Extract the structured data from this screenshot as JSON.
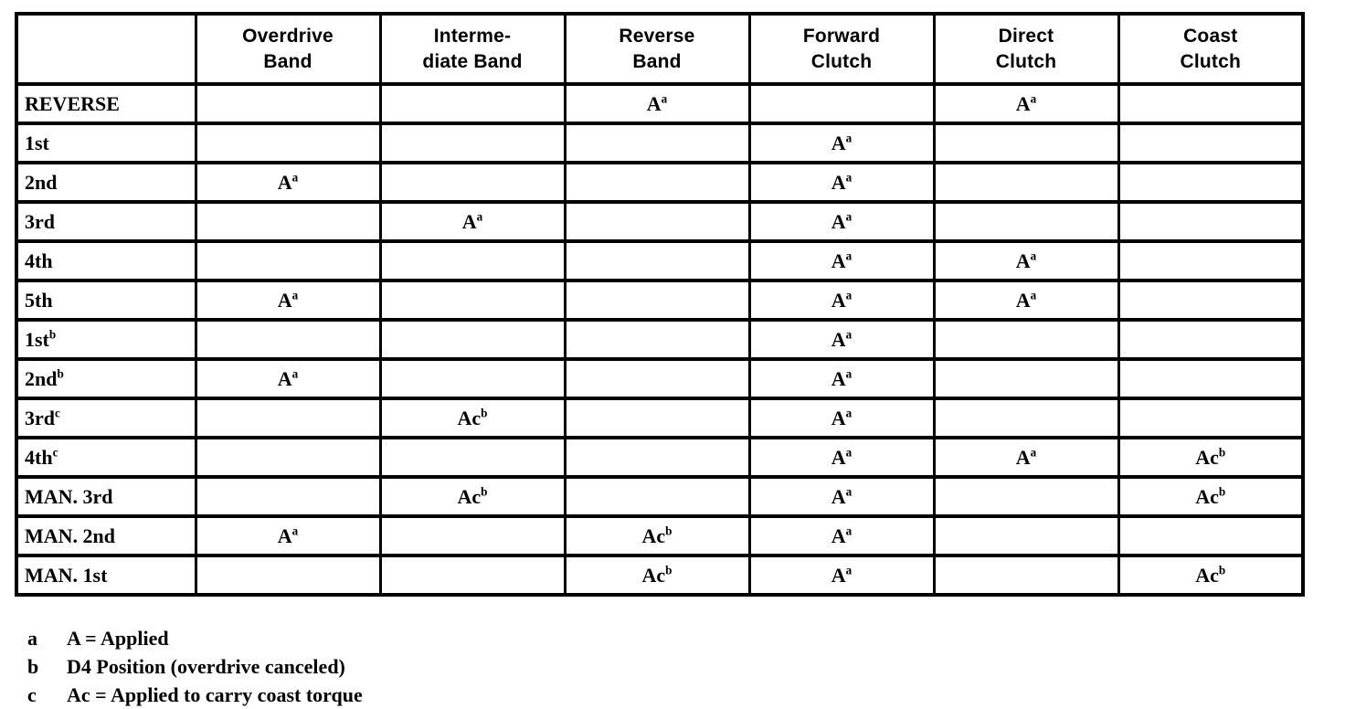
{
  "page": {
    "background_color": "#ffffff",
    "ink_color": "#000000",
    "description": "Clutch and band application chart (scanned manual page)"
  },
  "table": {
    "headers": [
      {
        "line1": "",
        "line2": ""
      },
      {
        "line1": "Overdrive",
        "line2": "Band"
      },
      {
        "line1": "Interme-",
        "line2": "diate Band"
      },
      {
        "line1": "Reverse",
        "line2": "Band"
      },
      {
        "line1": "Forward",
        "line2": "Clutch"
      },
      {
        "line1": "Direct",
        "line2": "Clutch"
      },
      {
        "line1": "Coast",
        "line2": "Clutch"
      }
    ],
    "rows": [
      {
        "label": "REVERSE",
        "sup": "",
        "cells": [
          null,
          null,
          {
            "text": "A",
            "sup": "a"
          },
          null,
          {
            "text": "A",
            "sup": "a"
          },
          null
        ]
      },
      {
        "label": "1st",
        "sup": "",
        "cells": [
          null,
          null,
          null,
          {
            "text": "A",
            "sup": "a"
          },
          null,
          null
        ]
      },
      {
        "label": "2nd",
        "sup": "",
        "cells": [
          {
            "text": "A",
            "sup": "a"
          },
          null,
          null,
          {
            "text": "A",
            "sup": "a"
          },
          null,
          null
        ]
      },
      {
        "label": "3rd",
        "sup": "",
        "cells": [
          null,
          {
            "text": "A",
            "sup": "a"
          },
          null,
          {
            "text": "A",
            "sup": "a"
          },
          null,
          null
        ]
      },
      {
        "label": "4th",
        "sup": "",
        "cells": [
          null,
          null,
          null,
          {
            "text": "A",
            "sup": "a"
          },
          {
            "text": "A",
            "sup": "a"
          },
          null
        ]
      },
      {
        "label": "5th",
        "sup": "",
        "cells": [
          {
            "text": "A",
            "sup": "a"
          },
          null,
          null,
          {
            "text": "A",
            "sup": "a"
          },
          {
            "text": "A",
            "sup": "a"
          },
          null
        ]
      },
      {
        "label": "1st",
        "sup": "b",
        "cells": [
          null,
          null,
          null,
          {
            "text": "A",
            "sup": "a"
          },
          null,
          null
        ]
      },
      {
        "label": "2nd",
        "sup": "b",
        "cells": [
          {
            "text": "A",
            "sup": "a"
          },
          null,
          null,
          {
            "text": "A",
            "sup": "a"
          },
          null,
          null
        ]
      },
      {
        "label": "3rd",
        "sup": "c",
        "cells": [
          null,
          {
            "text": "Ac",
            "sup": "b"
          },
          null,
          {
            "text": "A",
            "sup": "a"
          },
          null,
          null
        ]
      },
      {
        "label": "4th",
        "sup": "c",
        "cells": [
          null,
          null,
          null,
          {
            "text": "A",
            "sup": "a"
          },
          {
            "text": "A",
            "sup": "a"
          },
          {
            "text": "Ac",
            "sup": "b"
          }
        ]
      },
      {
        "label": "MAN. 3rd",
        "sup": "",
        "cells": [
          null,
          {
            "text": "Ac",
            "sup": "b"
          },
          null,
          {
            "text": "A",
            "sup": "a"
          },
          null,
          {
            "text": "Ac",
            "sup": "b"
          }
        ]
      },
      {
        "label": "MAN. 2nd",
        "sup": "",
        "cells": [
          {
            "text": "A",
            "sup": "a"
          },
          null,
          {
            "text": "Ac",
            "sup": "b"
          },
          {
            "text": "A",
            "sup": "a"
          },
          null,
          null
        ]
      },
      {
        "label": "MAN. 1st",
        "sup": "",
        "cells": [
          null,
          null,
          {
            "text": "Ac",
            "sup": "b"
          },
          {
            "text": "A",
            "sup": "a"
          },
          null,
          {
            "text": "Ac",
            "sup": "b"
          }
        ]
      }
    ]
  },
  "footnotes": [
    {
      "marker": "a",
      "text": "A = Applied"
    },
    {
      "marker": "b",
      "text": "D4 Position (overdrive canceled)"
    },
    {
      "marker": "c",
      "text": "Ac = Applied to carry coast torque"
    }
  ]
}
